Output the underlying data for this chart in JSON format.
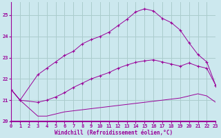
{
  "xlabel": "Windchill (Refroidissement éolien,°C)",
  "bg_color": "#cce8ee",
  "grid_color": "#aacccc",
  "line_color": "#990099",
  "xlim": [
    0,
    23
  ],
  "ylim": [
    20,
    25.6
  ],
  "yticks": [
    20,
    21,
    22,
    23,
    24,
    25
  ],
  "xticks": [
    0,
    1,
    2,
    3,
    4,
    5,
    6,
    7,
    8,
    9,
    10,
    11,
    12,
    13,
    14,
    15,
    16,
    17,
    18,
    19,
    20,
    21,
    22,
    23
  ],
  "series1_x": [
    0,
    1,
    3,
    4,
    5,
    6,
    7,
    8,
    9,
    10,
    11,
    12,
    13,
    14,
    15,
    16,
    17,
    18,
    19,
    20,
    21,
    22,
    23
  ],
  "series1_y": [
    21.5,
    21.0,
    20.25,
    20.25,
    20.35,
    20.45,
    20.5,
    20.55,
    20.6,
    20.65,
    20.7,
    20.75,
    20.8,
    20.85,
    20.9,
    20.95,
    21.0,
    21.05,
    21.1,
    21.2,
    21.3,
    21.2,
    20.9
  ],
  "series2_x": [
    0,
    1,
    3,
    4,
    5,
    6,
    7,
    8,
    9,
    10,
    11,
    12,
    13,
    14,
    15,
    16,
    17,
    18,
    19,
    20,
    21,
    22,
    23
  ],
  "series2_y": [
    21.5,
    21.0,
    20.9,
    21.0,
    21.15,
    21.35,
    21.6,
    21.8,
    22.0,
    22.15,
    22.3,
    22.5,
    22.65,
    22.78,
    22.85,
    22.9,
    22.8,
    22.7,
    22.6,
    22.75,
    22.6,
    22.5,
    21.7
  ],
  "series3_x": [
    0,
    1,
    3,
    4,
    5,
    6,
    7,
    8,
    9,
    10,
    11,
    12,
    13,
    14,
    15,
    16,
    17,
    18,
    19,
    20,
    21,
    22,
    23
  ],
  "series3_y": [
    21.5,
    21.0,
    22.2,
    22.5,
    22.8,
    23.1,
    23.3,
    23.65,
    23.85,
    24.0,
    24.2,
    24.5,
    24.8,
    25.15,
    25.3,
    25.2,
    24.85,
    24.65,
    24.3,
    23.7,
    23.15,
    22.8,
    21.7
  ]
}
